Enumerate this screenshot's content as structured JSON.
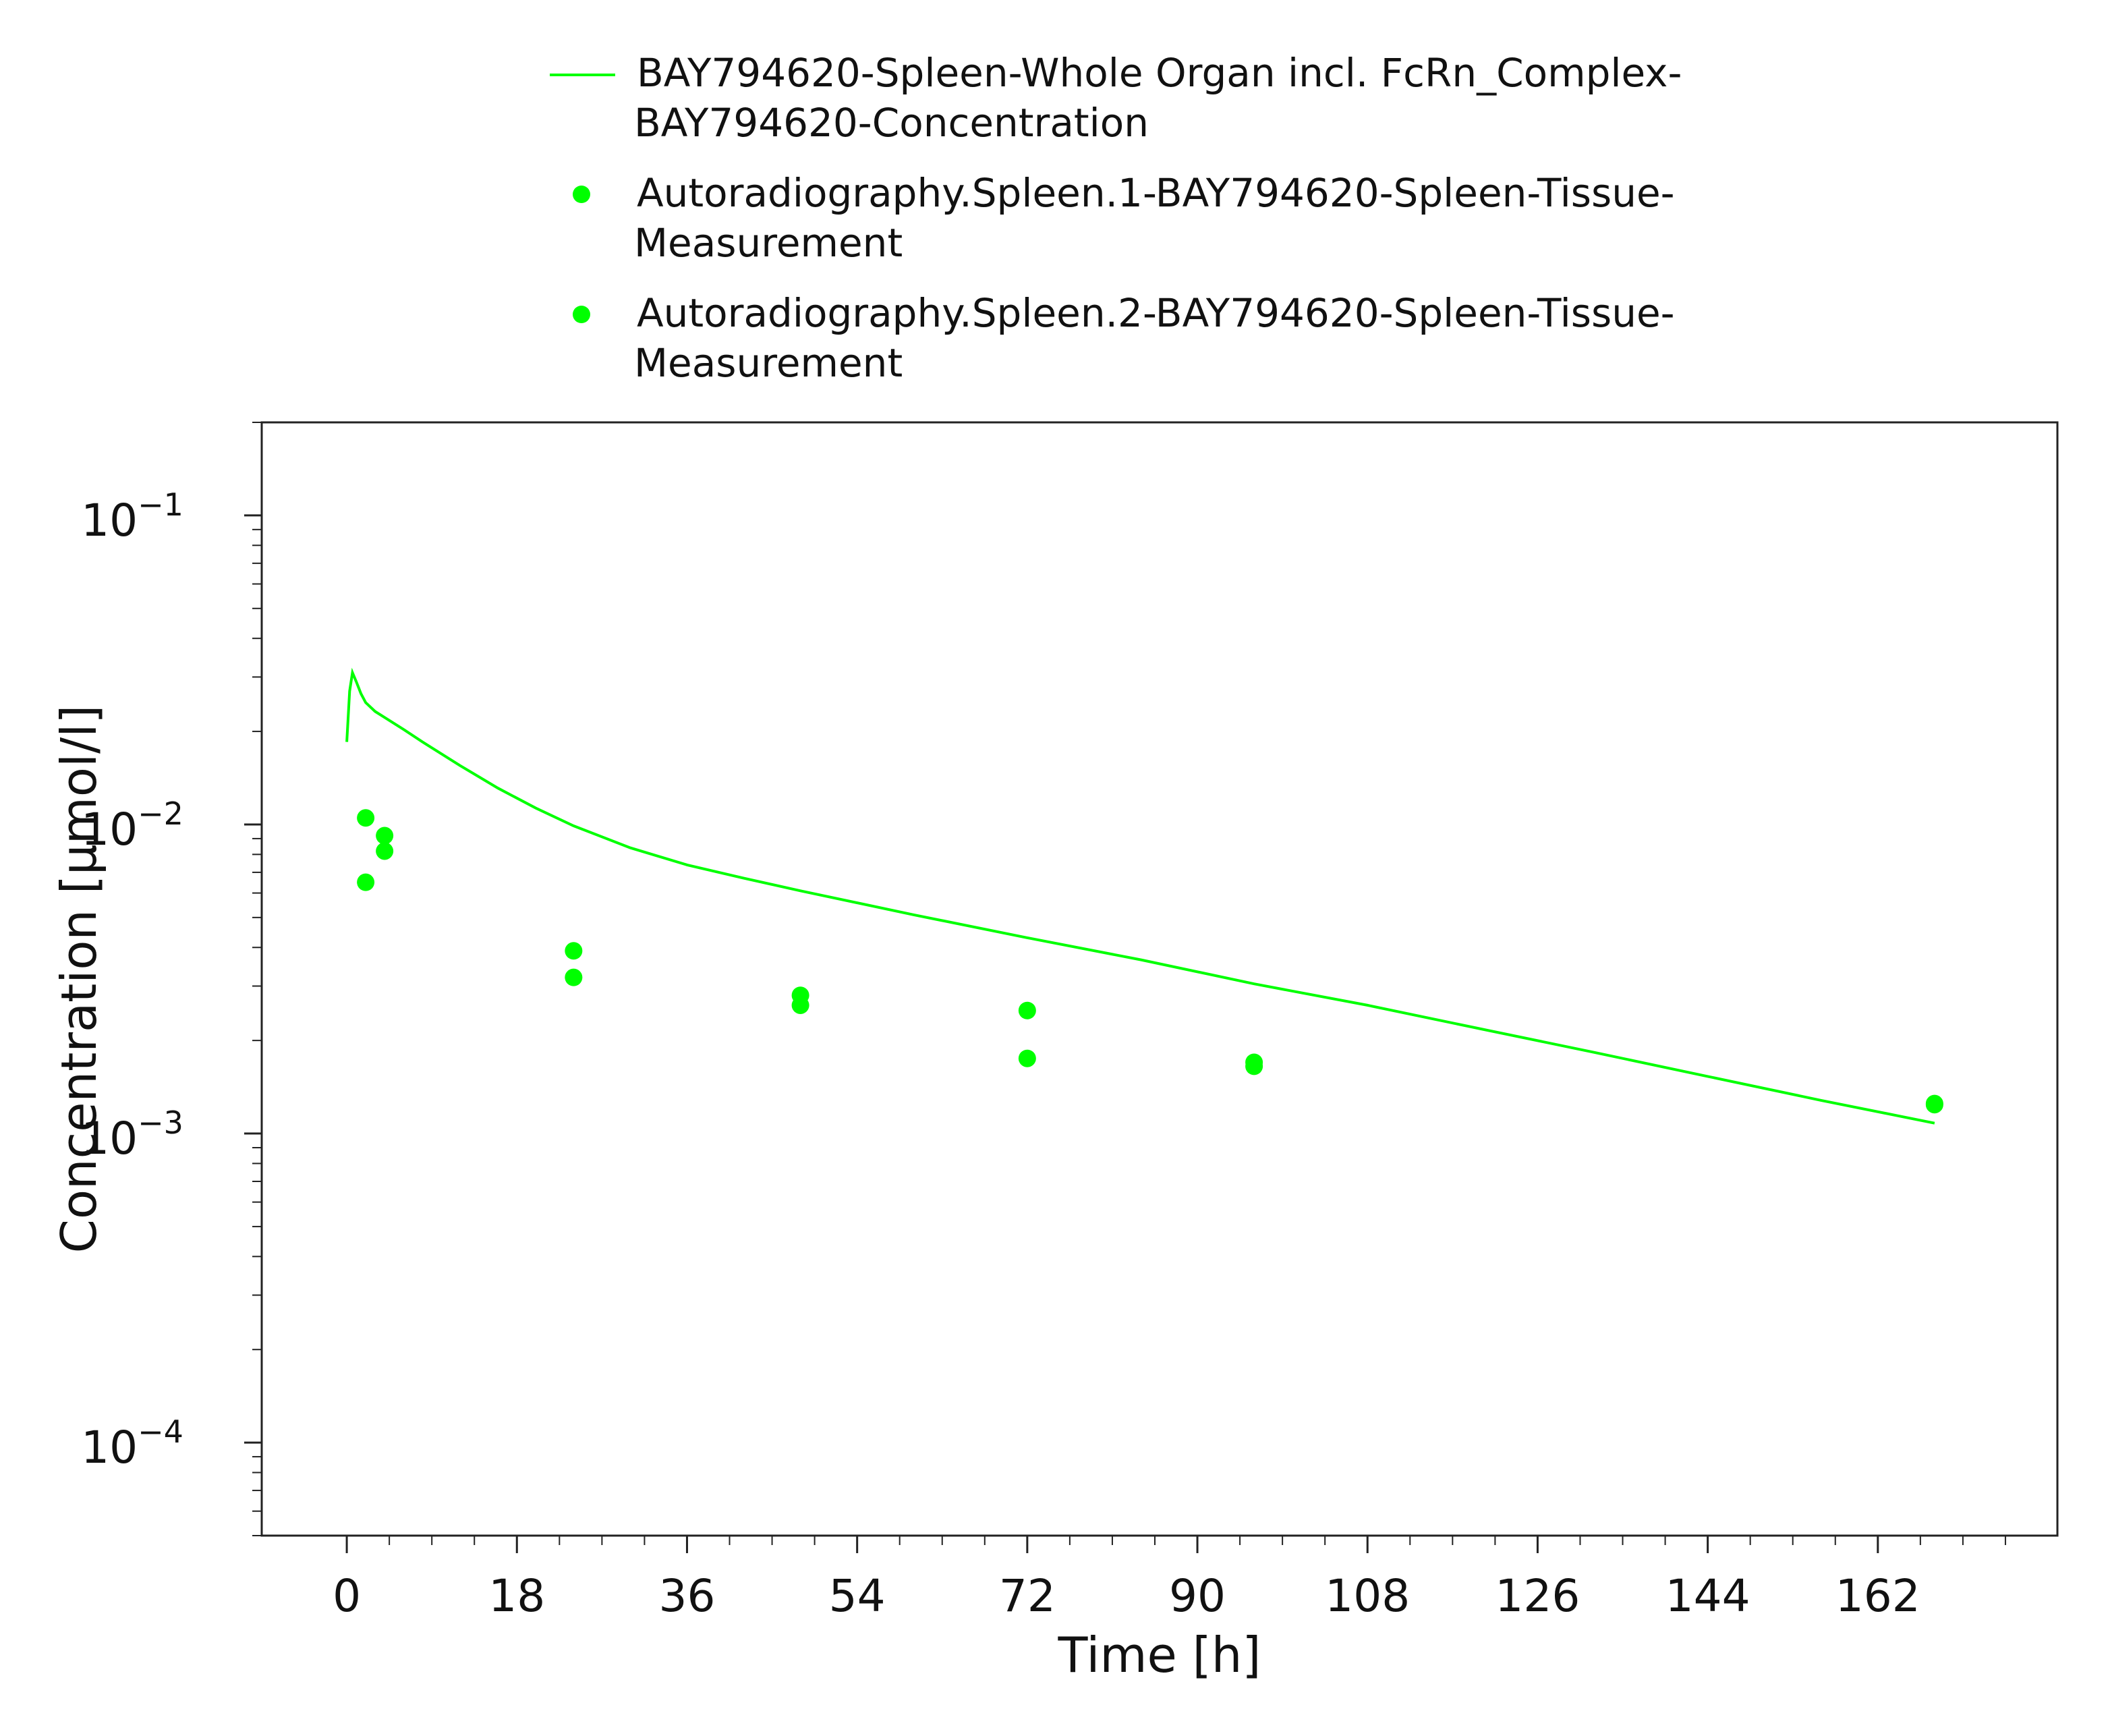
{
  "chart_data": {
    "type": "scatter",
    "title": "",
    "xlabel": "Time [h]",
    "ylabel": "Concentration [µmol/l]",
    "xlim": [
      -9,
      181
    ],
    "ylim": [
      5e-05,
      0.2
    ],
    "yscale": "log",
    "grid": false,
    "legend_position": "top",
    "x_ticks": [
      "0",
      "18",
      "36",
      "54",
      "72",
      "90",
      "108",
      "126",
      "144",
      "162"
    ],
    "y_ticks": [
      {
        "mantissa": "10",
        "exponent": "−1"
      },
      {
        "mantissa": "10",
        "exponent": "−2"
      },
      {
        "mantissa": "10",
        "exponent": "−3"
      },
      {
        "mantissa": "10",
        "exponent": "−4"
      }
    ],
    "series": [
      {
        "name_lines": [
          "BAY794620-Spleen-Whole Organ incl. FcRn_Complex-",
          "BAY794620-Concentration"
        ],
        "kind": "line",
        "color": "#00ff00",
        "x": [
          0,
          0.3,
          0.6,
          1,
          1.5,
          2,
          3,
          4,
          6,
          8,
          12,
          16,
          20,
          24,
          30,
          36,
          42,
          48,
          60,
          72,
          84,
          96,
          108,
          120,
          132,
          144,
          156,
          168
        ],
        "y": [
          0.0185,
          0.027,
          0.031,
          0.029,
          0.0265,
          0.0248,
          0.0232,
          0.0222,
          0.0203,
          0.0185,
          0.0155,
          0.0131,
          0.0113,
          0.0099,
          0.0084,
          0.0074,
          0.0067,
          0.0061,
          0.0051,
          0.0043,
          0.00365,
          0.00305,
          0.0026,
          0.00218,
          0.00183,
          0.00153,
          0.00128,
          0.00108
        ]
      },
      {
        "name_lines": [
          "Autoradiography.Spleen.1-BAY794620-Spleen-Tissue-",
          "Measurement"
        ],
        "kind": "scatter",
        "color": "#00ff00",
        "x": [
          2,
          4,
          24,
          48,
          72,
          96,
          168
        ],
        "y": [
          0.0105,
          0.0092,
          0.0039,
          0.0028,
          0.0025,
          0.0017,
          0.00125
        ]
      },
      {
        "name_lines": [
          "Autoradiography.Spleen.2-BAY794620-Spleen-Tissue-",
          "Measurement"
        ],
        "kind": "scatter",
        "color": "#00ff00",
        "x": [
          2,
          4,
          24,
          48,
          72,
          96,
          168
        ],
        "y": [
          0.0065,
          0.0082,
          0.0032,
          0.0026,
          0.00175,
          0.00165,
          0.00124
        ]
      }
    ]
  }
}
